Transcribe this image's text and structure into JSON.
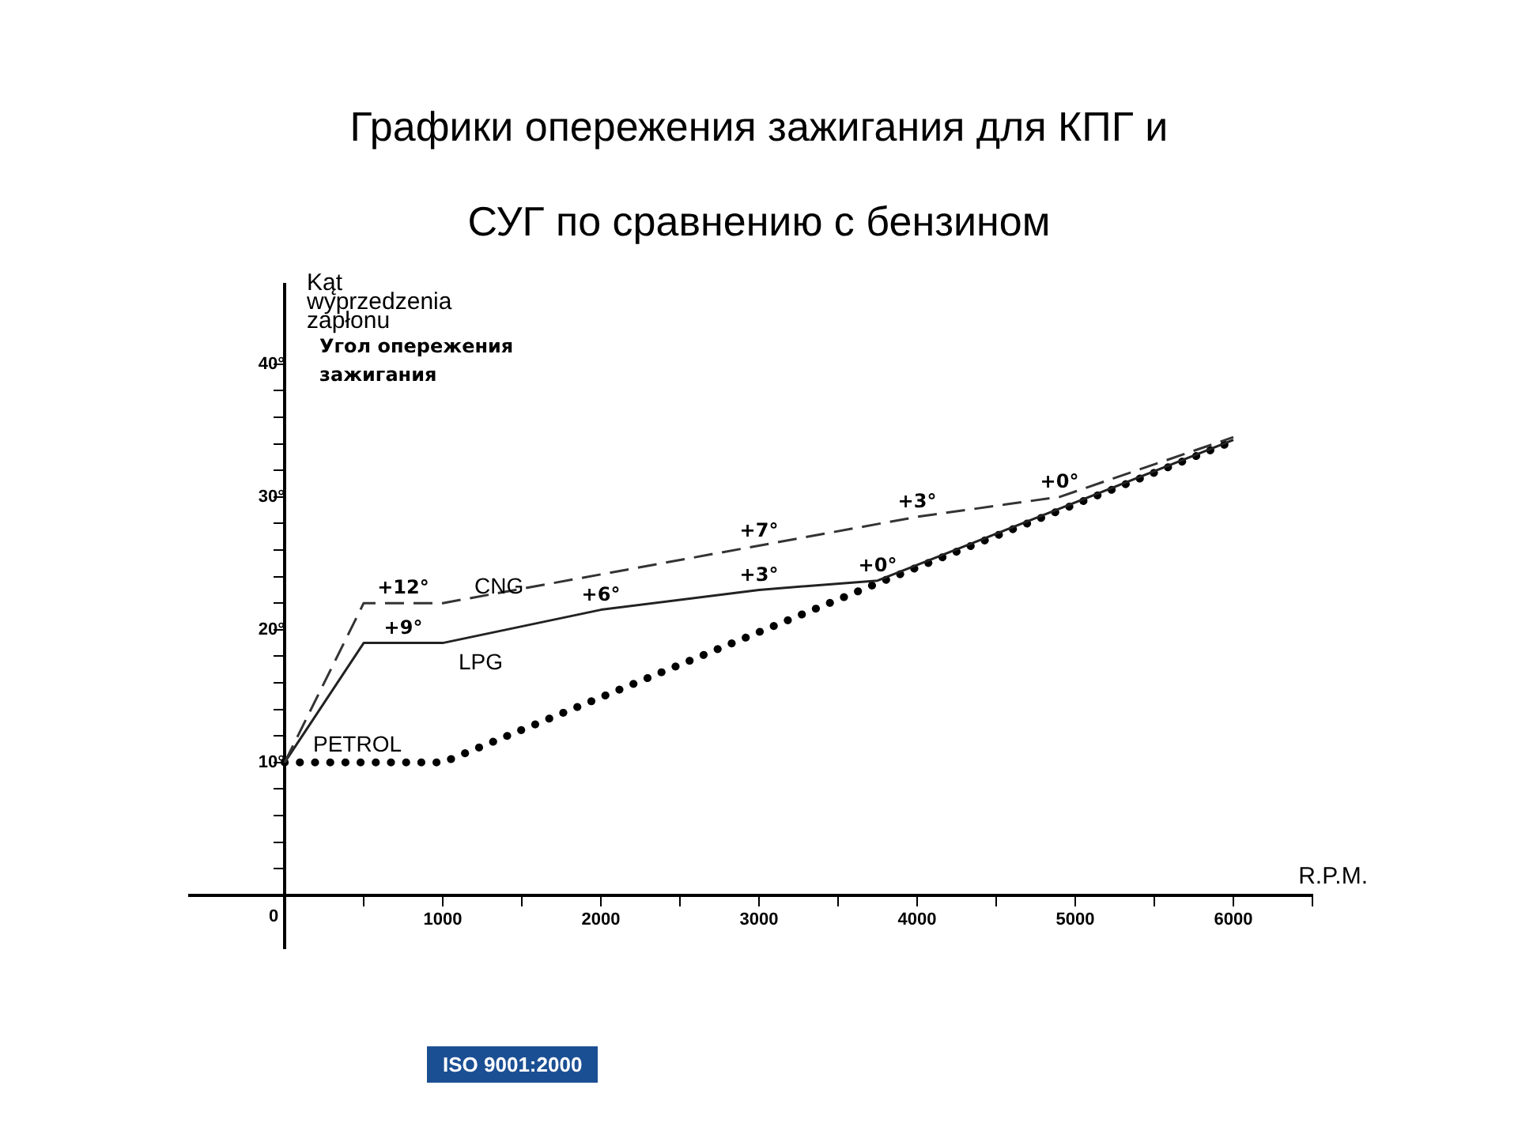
{
  "chart_data": {
    "type": "line",
    "title": "Графики опережения зажигания  для КПГ и СУГ по сравнению с бензином",
    "xlabel": "R.P.M.",
    "ylabel": "Kąt wyprzedzenia zapłonu",
    "xlim": [
      -600,
      6500
    ],
    "ylim": [
      -4,
      46
    ],
    "xticks": [
      {
        "value": 0,
        "label": "0"
      },
      {
        "value": 500,
        "label": null
      },
      1000,
      {
        "value": 1500,
        "label": null
      },
      2000,
      {
        "value": 2500,
        "label": null
      },
      3000,
      {
        "value": 3500,
        "label": null
      },
      4000,
      {
        "value": 4500,
        "label": null
      },
      5000,
      {
        "value": 5500,
        "label": null
      },
      6000,
      {
        "value": 6500,
        "label": null
      }
    ],
    "yticks": [
      {
        "value": 2,
        "label": null
      },
      {
        "value": 4,
        "label": null
      },
      {
        "value": 6,
        "label": null
      },
      {
        "value": 8,
        "label": null
      },
      {
        "value": 10,
        "label": "10°"
      },
      {
        "value": 12,
        "label": null
      },
      {
        "value": 14,
        "label": null
      },
      {
        "value": 16,
        "label": null
      },
      {
        "value": 18,
        "label": null
      },
      {
        "value": 20,
        "label": "20°"
      },
      {
        "value": 22,
        "label": null
      },
      {
        "value": 24,
        "label": null
      },
      {
        "value": 26,
        "label": null
      },
      {
        "value": 28,
        "label": null
      },
      {
        "value": 30,
        "label": "30°"
      },
      {
        "value": 32,
        "label": null
      },
      {
        "value": 34,
        "label": null
      },
      {
        "value": 36,
        "label": null
      },
      {
        "value": 38,
        "label": null
      },
      {
        "value": 40,
        "label": "40°"
      }
    ],
    "grid": false,
    "legend": false,
    "marker": "none",
    "series": [
      {
        "name": "CNG",
        "color": "#333333",
        "line_style": "dashed",
        "x": [
          0,
          500,
          1000,
          4000,
          4900,
          6000
        ],
        "values": [
          10,
          22,
          22,
          28.5,
          30,
          34.5
        ]
      },
      {
        "name": "LPG",
        "color": "#222222",
        "line_style": "solid",
        "x": [
          0,
          500,
          1000,
          2000,
          3000,
          3750,
          6000
        ],
        "values": [
          10,
          19,
          19,
          21.5,
          23,
          23.7,
          34.3
        ]
      },
      {
        "name": "PETROL",
        "color": "#000000",
        "line_style": "dotted",
        "x": [
          0,
          1000,
          3750,
          6000
        ],
        "values": [
          10,
          10,
          23.5,
          34.2
        ]
      }
    ],
    "annotations": [
      "Угол опережения зажигания",
      "ISO 9001:2000",
      {
        "text": "+12°",
        "x": 750,
        "y": 22
      },
      {
        "text": "+9°",
        "x": 750,
        "y": 19
      },
      {
        "text": "+6°",
        "x": 2000,
        "y": 21.5
      },
      {
        "text": "+3°",
        "x": 3000,
        "y": 23
      },
      {
        "text": "+0°",
        "x": 3750,
        "y": 23.7
      },
      {
        "text": "+7°",
        "x": 3000,
        "y": 26.3
      },
      {
        "text": "+3°",
        "x": 4000,
        "y": 28.5
      },
      {
        "text": "+0°",
        "x": 4900,
        "y": 30
      }
    ]
  }
}
